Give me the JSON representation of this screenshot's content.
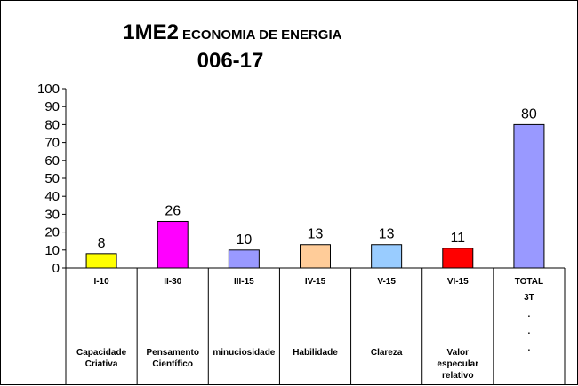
{
  "chart_data": {
    "type": "bar",
    "title_main": "1ME2",
    "title_sub": "ECONOMIA DE ENERGIA",
    "title_line2": "006-17",
    "ylim": [
      0,
      100
    ],
    "yticks": [
      0,
      10,
      20,
      30,
      40,
      50,
      60,
      70,
      80,
      90,
      100
    ],
    "grid": false,
    "categories": [
      {
        "code": "I-10",
        "desc": [
          "Capacidade",
          "Criativa"
        ],
        "value": 8,
        "color": "#ffff00"
      },
      {
        "code": "II-30",
        "desc": [
          "Pensamento",
          "Científico"
        ],
        "value": 26,
        "color": "#ff00ff"
      },
      {
        "code": "III-15",
        "desc": [
          "minuciosidade"
        ],
        "value": 10,
        "color": "#9999ff"
      },
      {
        "code": "IV-15",
        "desc": [
          "Habilidade"
        ],
        "value": 13,
        "color": "#ffcc99"
      },
      {
        "code": "V-15",
        "desc": [
          "Clareza"
        ],
        "value": 13,
        "color": "#99ccff"
      },
      {
        "code": "VI-15",
        "desc": [
          "Valor",
          "especular",
          "relativo"
        ],
        "value": 11,
        "color": "#ff0000"
      },
      {
        "code": "TOTAL",
        "desc": [
          "3T",
          ".",
          ".",
          "."
        ],
        "value": 80,
        "color": "#9999ff"
      }
    ]
  }
}
